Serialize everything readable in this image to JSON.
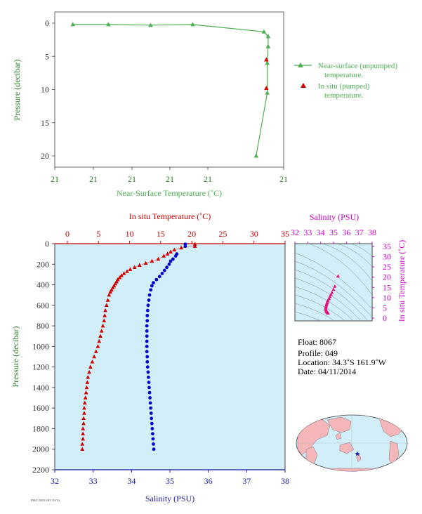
{
  "colors": {
    "near_surface": "#4caf50",
    "in_situ": "#d00000",
    "salinity": "#0000cc",
    "ts_points": "#e0157a",
    "axis_dark": "#333333",
    "axis_green": "#2e7d2e",
    "axis_red": "#cc0000",
    "axis_blue": "#1a1aa6",
    "axis_magenta": "#cc00cc",
    "panel_fill": "#d2eef9",
    "land": "#f4b6b9"
  },
  "chart_data": [
    {
      "id": "near-surface",
      "type": "line",
      "xlabel": "Near-Surface Temperature (˚C)",
      "ylabel": "Pressure (decibar)",
      "xticks": [
        "21",
        "21",
        "21",
        "21",
        "21",
        "21"
      ],
      "yticks": [
        "0",
        "5",
        "10",
        "15",
        "20"
      ],
      "ylim": [
        0,
        22
      ],
      "y_reversed": true,
      "grid": false,
      "legend_position": "right",
      "series": [
        {
          "name": "Near-surface (unpumped)\ntemperature.",
          "legend_line1": "Near-surface (unpumped)",
          "legend_line2": "temperature.",
          "marker": "triangle",
          "points": [
            {
              "x": 0.05,
              "y": 0.2
            },
            {
              "x": 0.21,
              "y": 0.2
            },
            {
              "x": 0.4,
              "y": 0.3
            },
            {
              "x": 0.59,
              "y": 0.2
            },
            {
              "x": 0.911,
              "y": 1.3
            },
            {
              "x": 0.93,
              "y": 2.0
            },
            {
              "x": 0.93,
              "y": 3.5
            },
            {
              "x": 0.926,
              "y": 6.0
            },
            {
              "x": 0.926,
              "y": 10.5
            },
            {
              "x": 0.876,
              "y": 20.0
            }
          ]
        },
        {
          "name": "In situ (pumped)\ntemperature.",
          "legend_line1": "In situ (pumped)",
          "legend_line2": "temperature.",
          "marker": "triangle",
          "points": [
            {
              "x": 0.922,
              "y": 5.5
            },
            {
              "x": 0.922,
              "y": 9.8
            }
          ]
        }
      ]
    },
    {
      "id": "profile",
      "type": "scatter",
      "ylabel": "Pressure (decibar)",
      "ylim": [
        0,
        2200
      ],
      "y_reversed": true,
      "yticks": [
        0,
        200,
        400,
        600,
        800,
        1000,
        1200,
        1400,
        1600,
        1800,
        2000,
        2200
      ],
      "x_top": {
        "label": "In situ Temperature (˚C)",
        "range": [
          -2,
          35
        ],
        "ticks": [
          0,
          5,
          10,
          15,
          20,
          25,
          30,
          35
        ]
      },
      "x_bottom": {
        "label": "Salinity (PSU)",
        "range": [
          32,
          38
        ],
        "ticks": [
          32,
          33,
          34,
          35,
          36,
          37,
          38
        ]
      },
      "temperature": {
        "pressure": [
          5,
          25,
          40,
          60,
          80,
          100,
          120,
          150,
          170,
          190,
          210,
          230,
          250,
          270,
          290,
          310,
          330,
          350,
          370,
          390,
          410,
          430,
          450,
          470,
          500,
          550,
          600,
          650,
          700,
          750,
          800,
          850,
          900,
          950,
          1000,
          1050,
          1100,
          1150,
          1200,
          1250,
          1300,
          1350,
          1400,
          1450,
          1500,
          1550,
          1600,
          1650,
          1700,
          1750,
          1800,
          1850,
          1900,
          1950,
          2000
        ],
        "values": [
          20.5,
          20.5,
          18.3,
          17.2,
          16.6,
          16.1,
          15.5,
          14.6,
          13.6,
          12.6,
          11.6,
          10.8,
          10.1,
          9.6,
          9.1,
          8.7,
          8.4,
          8.1,
          7.9,
          7.7,
          7.5,
          7.3,
          7.1,
          6.9,
          6.7,
          6.5,
          6.3,
          6.1,
          6.0,
          5.9,
          5.7,
          5.5,
          5.3,
          5.1,
          4.9,
          4.6,
          4.3,
          4.0,
          3.7,
          3.5,
          3.3,
          3.2,
          3.1,
          3.0,
          2.9,
          2.8,
          2.7,
          2.7,
          2.6,
          2.6,
          2.5,
          2.5,
          2.5,
          2.4,
          2.4
        ]
      },
      "salinity": {
        "pressure": [
          5,
          25,
          100,
          120,
          150,
          170,
          200,
          230,
          260,
          290,
          320,
          350,
          380,
          410,
          450,
          500,
          550,
          600,
          650,
          700,
          750,
          800,
          850,
          900,
          950,
          1000,
          1050,
          1100,
          1150,
          1200,
          1250,
          1300,
          1350,
          1400,
          1450,
          1500,
          1550,
          1600,
          1650,
          1700,
          1750,
          1800,
          1850,
          1900,
          1950,
          2000
        ],
        "values": [
          35.4,
          35.4,
          35.18,
          35.15,
          35.08,
          35.02,
          34.98,
          34.92,
          34.86,
          34.8,
          34.73,
          34.65,
          34.57,
          34.53,
          34.5,
          34.47,
          34.45,
          34.43,
          34.42,
          34.41,
          34.41,
          34.4,
          34.4,
          34.4,
          34.4,
          34.4,
          34.4,
          34.41,
          34.41,
          34.42,
          34.43,
          34.44,
          34.45,
          34.46,
          34.47,
          34.48,
          34.49,
          34.5,
          34.51,
          34.52,
          34.53,
          34.54,
          34.55,
          34.56,
          34.57,
          34.58
        ]
      }
    },
    {
      "id": "ts-diagram",
      "type": "scatter",
      "xlabel": "Salinity (PSU)",
      "ylabel": "In situ Temperature (˚C)",
      "xticks": [
        32,
        33,
        34,
        35,
        36,
        37,
        38
      ],
      "yticks": [
        0,
        5,
        10,
        15,
        20,
        25,
        30,
        35
      ],
      "xlim": [
        32,
        38
      ],
      "ylim": [
        -1,
        35
      ],
      "points": [
        {
          "s": 35.35,
          "t": 20.5
        },
        {
          "s": 35.1,
          "t": 15.5
        },
        {
          "s": 35.0,
          "t": 14.0
        },
        {
          "s": 34.88,
          "t": 12.5
        },
        {
          "s": 34.8,
          "t": 11.5
        },
        {
          "s": 34.72,
          "t": 10.5
        },
        {
          "s": 34.65,
          "t": 9.5
        },
        {
          "s": 34.57,
          "t": 8.7
        },
        {
          "s": 34.52,
          "t": 8.0
        },
        {
          "s": 34.5,
          "t": 7.5
        },
        {
          "s": 34.47,
          "t": 7.0
        },
        {
          "s": 34.45,
          "t": 6.5
        },
        {
          "s": 34.43,
          "t": 6.0
        },
        {
          "s": 34.41,
          "t": 5.5
        },
        {
          "s": 34.4,
          "t": 5.0
        },
        {
          "s": 34.4,
          "t": 4.5
        },
        {
          "s": 34.41,
          "t": 4.0
        },
        {
          "s": 34.43,
          "t": 3.5
        },
        {
          "s": 34.46,
          "t": 3.1
        },
        {
          "s": 34.5,
          "t": 2.8
        },
        {
          "s": 34.54,
          "t": 2.6
        },
        {
          "s": 34.58,
          "t": 2.4
        }
      ]
    }
  ],
  "info": {
    "float": "Float:  8067",
    "profile": "Profile:  049",
    "location": "Location:  34.3˚S  161.9˚W",
    "date": "Date:  04/11/2014"
  },
  "map": {
    "float_position": {
      "lat": -34.3,
      "lon": -161.9
    }
  },
  "footer_text": "PRELIMINARY DATA"
}
